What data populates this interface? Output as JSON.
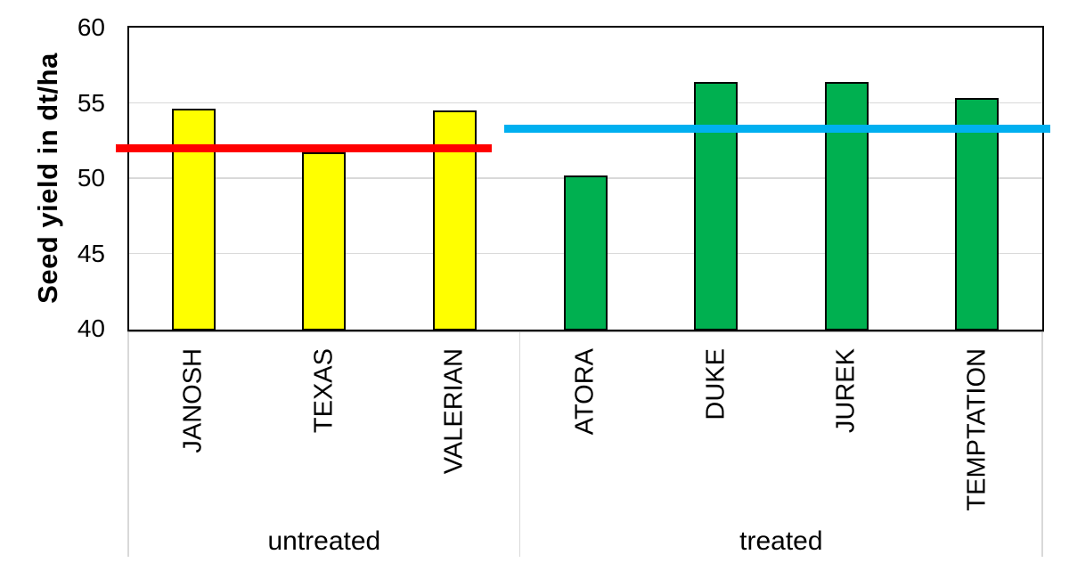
{
  "chart_data": {
    "type": "bar",
    "title": "",
    "ylabel": "Seed yield in dt/ha",
    "xlabel": "",
    "ylim": [
      40,
      60
    ],
    "yticks": [
      40,
      45,
      50,
      55,
      60
    ],
    "grid": "horizontal",
    "legend": "none",
    "categories": [
      "JANOSH",
      "TEXAS",
      "VALERIAN",
      "ATORA",
      "DUKE",
      "JUREK",
      "TEMPTATION"
    ],
    "values": [
      54.6,
      51.7,
      54.5,
      50.2,
      56.4,
      56.4,
      55.3
    ],
    "groups": [
      {
        "label": "untreated",
        "start_index": 0,
        "end_index": 2,
        "bar_color": "#FFFF00",
        "reference_line": {
          "value": 52.0,
          "color": "#FF0000"
        }
      },
      {
        "label": "treated",
        "start_index": 3,
        "end_index": 6,
        "bar_color": "#00B050",
        "reference_line": {
          "value": 53.3,
          "color": "#00B0F0"
        }
      }
    ]
  },
  "colors": {
    "background": "#FFFFFF",
    "bar_border": "#000000",
    "plot_border": "#000000",
    "gridline": "#D9D9D9",
    "category_divider": "#D9D9D9",
    "axis_underline": "#A6A6A6",
    "text": "#000000"
  }
}
